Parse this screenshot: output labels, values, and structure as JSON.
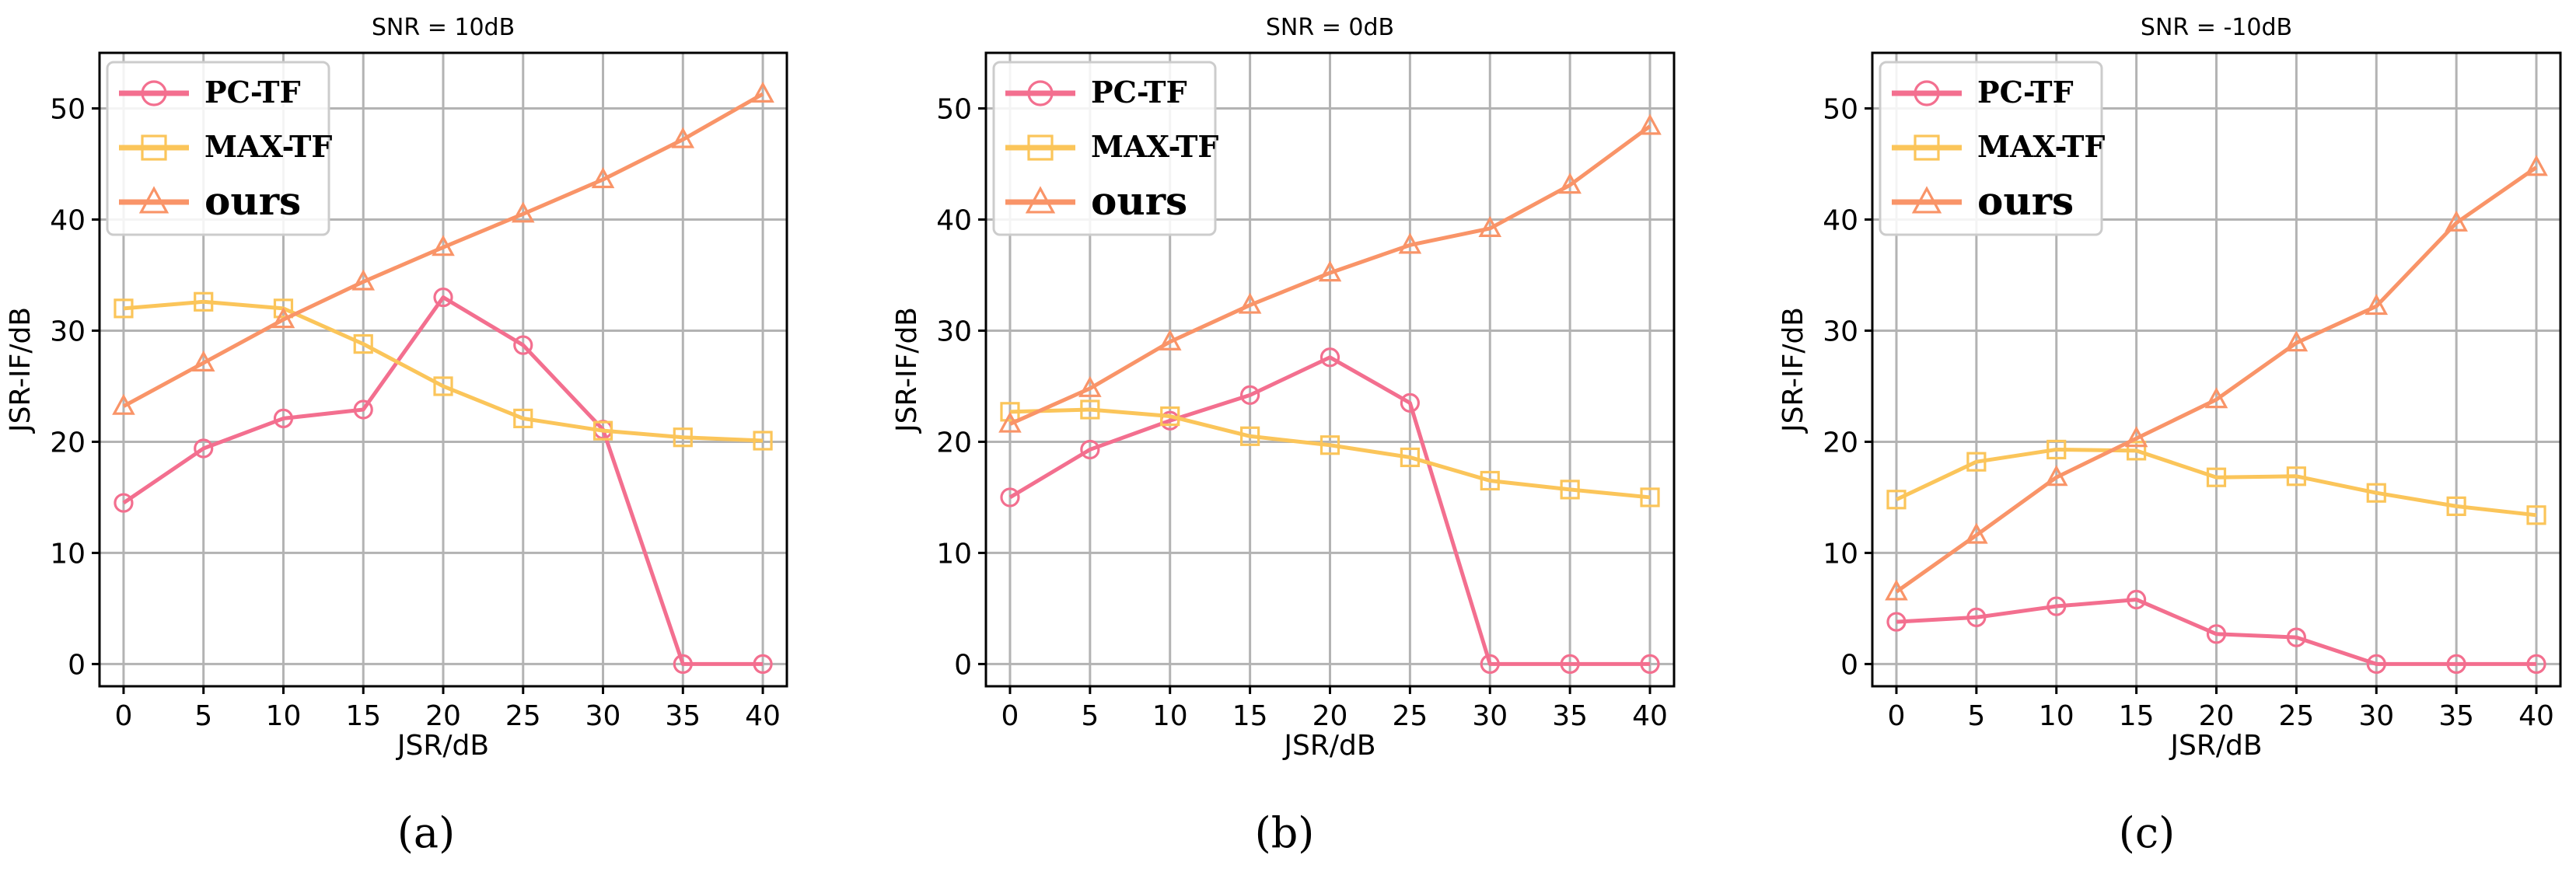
{
  "colors": {
    "pc_tf": "#f36f8f",
    "max_tf": "#fbc55a",
    "ours": "#f99468"
  },
  "chart_data": [
    {
      "type": "line",
      "title": "SNR = 10dB",
      "xlabel": "JSR/dB",
      "ylabel": "JSR-IF/dB",
      "caption": "(a)",
      "x": [
        0,
        5,
        10,
        15,
        20,
        25,
        30,
        35,
        40
      ],
      "x_ticks": [
        "0",
        "5",
        "10",
        "15",
        "20",
        "25",
        "30",
        "35",
        "40"
      ],
      "y_ticks": [
        "0",
        "10",
        "20",
        "30",
        "40",
        "50"
      ],
      "ylim": [
        -2,
        55
      ],
      "legend_position": "top-left",
      "series": [
        {
          "name": "PC-TF",
          "marker": "circle",
          "values": [
            14.5,
            19.4,
            22.1,
            22.9,
            33,
            28.7,
            21.1,
            0,
            0
          ]
        },
        {
          "name": "MAX-TF",
          "marker": "square",
          "values": [
            32,
            32.6,
            32,
            28.8,
            25,
            22.1,
            21,
            20.4,
            20.1
          ]
        },
        {
          "name": "ours",
          "marker": "triangle",
          "values": [
            23.2,
            27.1,
            31,
            34.4,
            37.5,
            40.5,
            43.6,
            47.2,
            51.3
          ]
        }
      ]
    },
    {
      "type": "line",
      "title": "SNR = 0dB",
      "xlabel": "JSR/dB",
      "ylabel": "JSR-IF/dB",
      "caption": "(b)",
      "x": [
        0,
        5,
        10,
        15,
        20,
        25,
        30,
        35,
        40
      ],
      "x_ticks": [
        "0",
        "5",
        "10",
        "15",
        "20",
        "25",
        "30",
        "35",
        "40"
      ],
      "y_ticks": [
        "0",
        "10",
        "20",
        "30",
        "40",
        "50"
      ],
      "ylim": [
        -2,
        55
      ],
      "legend_position": "top-left",
      "series": [
        {
          "name": "PC-TF",
          "marker": "circle",
          "values": [
            15,
            19.3,
            21.9,
            24.2,
            27.6,
            23.5,
            0,
            0,
            0
          ]
        },
        {
          "name": "MAX-TF",
          "marker": "square",
          "values": [
            22.7,
            22.9,
            22.3,
            20.5,
            19.7,
            18.6,
            16.5,
            15.7,
            15
          ]
        },
        {
          "name": "ours",
          "marker": "triangle",
          "values": [
            21.6,
            24.8,
            29,
            32.3,
            35.2,
            37.7,
            39.2,
            43.1,
            48.4
          ]
        }
      ]
    },
    {
      "type": "line",
      "title": "SNR = -10dB",
      "xlabel": "JSR/dB",
      "ylabel": "JSR-IF/dB",
      "caption": "(c)",
      "x": [
        0,
        5,
        10,
        15,
        20,
        25,
        30,
        35,
        40
      ],
      "x_ticks": [
        "0",
        "5",
        "10",
        "15",
        "20",
        "25",
        "30",
        "35",
        "40"
      ],
      "y_ticks": [
        "0",
        "10",
        "20",
        "30",
        "40",
        "50"
      ],
      "ylim": [
        -2,
        55
      ],
      "legend_position": "top-left",
      "series": [
        {
          "name": "PC-TF",
          "marker": "circle",
          "values": [
            3.8,
            4.2,
            5.2,
            5.8,
            2.7,
            2.4,
            0,
            0,
            0
          ]
        },
        {
          "name": "MAX-TF",
          "marker": "square",
          "values": [
            14.8,
            18.2,
            19.3,
            19.2,
            16.8,
            16.9,
            15.4,
            14.2,
            13.4
          ]
        },
        {
          "name": "ours",
          "marker": "triangle",
          "values": [
            6.5,
            11.6,
            16.8,
            20.3,
            23.8,
            28.9,
            32.2,
            39.7,
            44.7
          ]
        }
      ]
    }
  ]
}
